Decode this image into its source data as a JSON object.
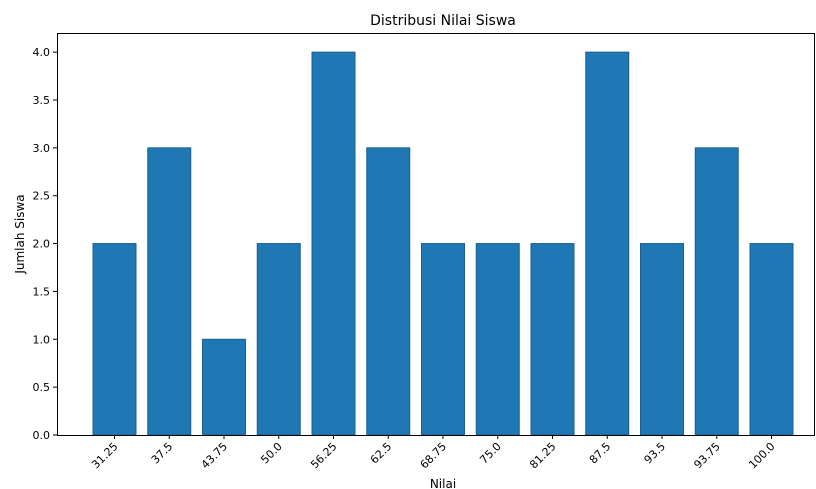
{
  "chart_data": {
    "type": "bar",
    "title": "Distribusi Nilai Siswa",
    "xlabel": "Nilai",
    "ylabel": "Jumlah Siswa",
    "categories": [
      "31.25",
      "37.5",
      "43.75",
      "50.0",
      "56.25",
      "62.5",
      "68.75",
      "75.0",
      "81.25",
      "87.5",
      "93.5",
      "93.75",
      "100.0"
    ],
    "values": [
      2,
      3,
      1,
      2,
      4,
      3,
      2,
      2,
      2,
      4,
      2,
      3,
      2
    ],
    "ylim": [
      0,
      4.2
    ],
    "yticks": [
      "0.0",
      "0.5",
      "1.0",
      "1.5",
      "2.0",
      "2.5",
      "3.0",
      "3.5",
      "4.0"
    ],
    "grid": false,
    "legend": "none",
    "bar_color": "#1f77b4",
    "bar_edge_color": "#1a5f8f"
  }
}
